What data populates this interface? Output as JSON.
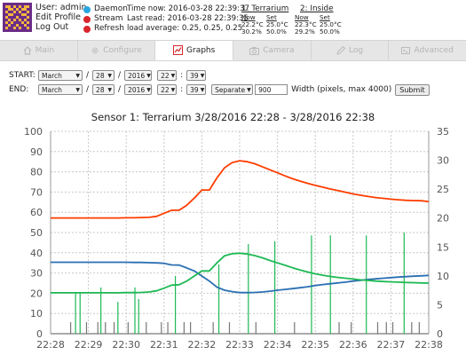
{
  "header": {
    "user": "User: admin",
    "edit_profile": "Edit Profile",
    "logout": "Log Out",
    "status": [
      {
        "label": "Daemon",
        "color": "#2aa7e0"
      },
      {
        "label": "Stream",
        "color": "#d9262c"
      },
      {
        "label": "Refresh",
        "color": "#d9262c"
      }
    ],
    "time_now": "Time now: 2016-03-28 22:39:37",
    "last_read": "Last read: 2016-03-28 22:39:35",
    "load_average": "load average: 0.25, 0.25, 0.25",
    "sensors": [
      {
        "title": "1: Terrarium",
        "now_label": "Now",
        "set_label": "Set",
        "temp_now": "22.2°C",
        "temp_set": "25.0°C",
        "hum_now": "30.2%",
        "hum_set": "50.0%"
      },
      {
        "title": "2: Inside",
        "now_label": "Now",
        "set_label": "Set",
        "temp_now": "22.3°C",
        "temp_set": "25.0°C",
        "hum_now": "29.2%",
        "hum_set": "50.0%"
      }
    ]
  },
  "tabs": [
    {
      "label": "Main",
      "icon": "home-icon",
      "active": false
    },
    {
      "label": "Configure",
      "icon": "gear-icon",
      "active": false
    },
    {
      "label": "Graphs",
      "icon": "graph-icon",
      "active": true
    },
    {
      "label": "Camera",
      "icon": "camera-icon",
      "active": false
    },
    {
      "label": "Log",
      "icon": "log-icon",
      "active": false
    },
    {
      "label": "Advanced",
      "icon": "advanced-icon",
      "active": false
    }
  ],
  "controls": {
    "start_label": "START:",
    "end_label": "END:",
    "start": {
      "month": "March",
      "day": "28",
      "year": "2016",
      "hour": "22",
      "minute": "39"
    },
    "end": {
      "month": "March",
      "day": "28",
      "year": "2016",
      "hour": "22",
      "minute": "39"
    },
    "mode": "Separate",
    "width_value": "900",
    "width_label": "Width (pixels, max 4000)",
    "submit_label": "Submit"
  },
  "chart_data": {
    "type": "line",
    "title": "Sensor 1: Terrarium  3/28/2016 22:28 - 3/28/2016 22:38",
    "x_ticks": [
      "22:28",
      "22:29",
      "22:30",
      "22:31",
      "22:32",
      "22:33",
      "22:34",
      "22:35",
      "22:36",
      "22:37",
      "22:38"
    ],
    "ylim_left": [
      0,
      100
    ],
    "y_ticks_left": [
      "0",
      "10",
      "20",
      "30",
      "40",
      "50",
      "60",
      "70",
      "80",
      "90",
      "100"
    ],
    "ylim_right": [
      0,
      35
    ],
    "y_ticks_right": [
      "0",
      "5",
      "10",
      "15",
      "20",
      "25",
      "30",
      "35"
    ],
    "grid": true,
    "series": [
      {
        "color": "#ff3d00",
        "axis": "left",
        "x": [
          0,
          0.2,
          0.4,
          0.6,
          0.8,
          1.0,
          1.2,
          1.4,
          1.6,
          1.8,
          2.0,
          2.2,
          2.4,
          2.6,
          2.8,
          3.0,
          3.2,
          3.4,
          3.6,
          3.8,
          4.0,
          4.2,
          4.4,
          4.6,
          4.8,
          5.0,
          5.2,
          5.4,
          5.6,
          5.8,
          6.0,
          6.2,
          6.4,
          6.6,
          6.8,
          7.0,
          7.2,
          7.4,
          7.6,
          7.8,
          8.0,
          8.2,
          8.4,
          8.6,
          8.8,
          9.0,
          9.2,
          9.4,
          9.6,
          9.8,
          10.0
        ],
        "values": [
          57.2,
          57.2,
          57.2,
          57.2,
          57.2,
          57.2,
          57.2,
          57.2,
          57.2,
          57.2,
          57.3,
          57.3,
          57.4,
          57.5,
          58.0,
          59.5,
          61.0,
          61.0,
          63.5,
          67.0,
          71.0,
          71.0,
          77.0,
          82.0,
          84.5,
          85.5,
          85.0,
          84.0,
          82.5,
          81.0,
          79.5,
          78.0,
          76.6,
          75.4,
          74.3,
          73.3,
          72.4,
          71.5,
          70.7,
          69.9,
          69.1,
          68.4,
          67.8,
          67.3,
          66.9,
          66.5,
          66.2,
          65.9,
          65.8,
          65.7,
          65.3
        ]
      },
      {
        "color": "#2a6fb2",
        "axis": "left",
        "x": [
          0,
          0.2,
          0.4,
          0.6,
          0.8,
          1.0,
          1.2,
          1.4,
          1.6,
          1.8,
          2.0,
          2.2,
          2.4,
          2.6,
          2.8,
          3.0,
          3.2,
          3.4,
          3.6,
          3.8,
          4.0,
          4.2,
          4.4,
          4.6,
          4.8,
          5.0,
          5.2,
          5.4,
          5.6,
          5.8,
          6.0,
          6.2,
          6.4,
          6.6,
          6.8,
          7.0,
          7.2,
          7.4,
          7.6,
          7.8,
          8.0,
          8.2,
          8.4,
          8.6,
          8.8,
          9.0,
          9.2,
          9.4,
          9.6,
          9.8,
          10.0
        ],
        "values": [
          35.3,
          35.3,
          35.3,
          35.3,
          35.3,
          35.3,
          35.3,
          35.3,
          35.3,
          35.3,
          35.3,
          35.2,
          35.2,
          35.1,
          35.0,
          34.8,
          34.0,
          33.9,
          32.5,
          31.0,
          28.5,
          26.0,
          23.0,
          21.5,
          20.8,
          20.3,
          20.3,
          20.4,
          20.6,
          21.0,
          21.5,
          21.9,
          22.3,
          22.7,
          23.2,
          23.8,
          24.3,
          24.7,
          25.1,
          25.5,
          26.0,
          26.4,
          26.8,
          27.1,
          27.4,
          27.7,
          28.0,
          28.2,
          28.4,
          28.6,
          28.8
        ]
      },
      {
        "color": "#1db954",
        "axis": "left",
        "x": [
          0,
          0.2,
          0.4,
          0.6,
          0.8,
          1.0,
          1.2,
          1.4,
          1.6,
          1.8,
          2.0,
          2.2,
          2.4,
          2.6,
          2.8,
          3.0,
          3.2,
          3.4,
          3.6,
          3.8,
          4.0,
          4.2,
          4.4,
          4.6,
          4.8,
          5.0,
          5.2,
          5.4,
          5.6,
          5.8,
          6.0,
          6.2,
          6.4,
          6.6,
          6.8,
          7.0,
          7.2,
          7.4,
          7.6,
          7.8,
          8.0,
          8.2,
          8.4,
          8.6,
          8.8,
          9.0,
          9.2,
          9.4,
          9.6,
          9.8,
          10.0
        ],
        "values": [
          20.2,
          20.2,
          20.2,
          20.2,
          20.2,
          20.2,
          20.2,
          20.2,
          20.2,
          20.2,
          20.3,
          20.3,
          20.4,
          20.6,
          21.2,
          22.5,
          24.0,
          24.2,
          26.0,
          28.5,
          31.0,
          31.0,
          35.0,
          38.5,
          39.5,
          39.8,
          39.4,
          38.6,
          37.5,
          36.2,
          35.0,
          33.8,
          32.6,
          31.5,
          30.5,
          29.6,
          28.9,
          28.3,
          27.8,
          27.4,
          27.0,
          26.6,
          26.3,
          26.0,
          25.8,
          25.6,
          25.5,
          25.3,
          25.2,
          25.1,
          25.0
        ]
      }
    ],
    "bars": {
      "axis": "right",
      "x": [
        0.53,
        0.66,
        0.78,
        0.95,
        1.25,
        1.33,
        1.45,
        1.68,
        1.78,
        2.05,
        2.23,
        2.33,
        2.53,
        2.93,
        3.1,
        3.3,
        3.53,
        3.7,
        4.3,
        4.45,
        4.73,
        5.23,
        5.43,
        5.93,
        6.45,
        6.9,
        7.4,
        7.63,
        7.95,
        8.35,
        8.65,
        8.88,
        9.05,
        9.35,
        9.55,
        9.75
      ],
      "values": [
        2.0,
        7.0,
        7.0,
        2.0,
        2.0,
        8.0,
        2.0,
        2.0,
        5.5,
        2.0,
        8.0,
        6.0,
        2.0,
        2.0,
        2.0,
        10.0,
        2.0,
        2.0,
        2.0,
        12.0,
        2.0,
        15.5,
        2.0,
        16.0,
        2.0,
        17.0,
        17.0,
        2.0,
        2.0,
        17.0,
        2.0,
        2.0,
        2.0,
        17.5,
        2.0,
        2.0
      ],
      "colors": [
        "#777",
        "#1db954",
        "#1db954",
        "#777",
        "#777",
        "#1db954",
        "#777",
        "#777",
        "#1db954",
        "#777",
        "#1db954",
        "#1db954",
        "#777",
        "#777",
        "#777",
        "#1db954",
        "#777",
        "#777",
        "#777",
        "#1db954",
        "#777",
        "#1db954",
        "#777",
        "#1db954",
        "#777",
        "#1db954",
        "#1db954",
        "#777",
        "#777",
        "#1db954",
        "#777",
        "#777",
        "#777",
        "#1db954",
        "#777",
        "#777"
      ]
    }
  }
}
